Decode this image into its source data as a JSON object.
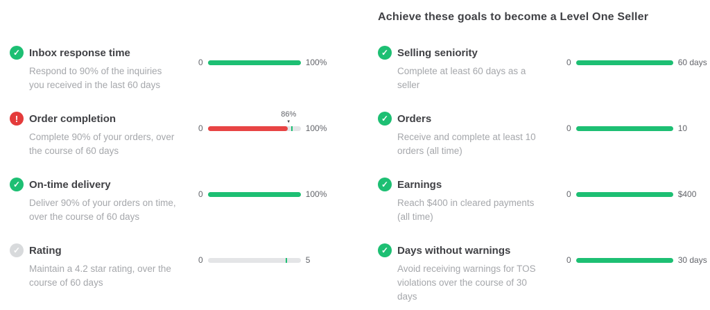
{
  "header": {
    "title": "Achieve these goals to become a Level One Seller"
  },
  "colors": {
    "success_green": "#1dbf73",
    "error_red": "#e84444",
    "neutral_icon_gray": "#d8dadc",
    "track_gray": "#e4e5e7",
    "title_text": "#404145",
    "description_text": "#a5a7ab"
  },
  "left_goals": [
    {
      "status": "success",
      "icon_glyph": "✓",
      "title": "Inbox response time",
      "description": "Respond to 90% of the inquiries you received in the last 60 days",
      "bar": {
        "start_label": "0",
        "end_label": "100%",
        "fill_percent": 100,
        "fill_color": "#1dbf73"
      }
    },
    {
      "status": "error",
      "icon_glyph": "!",
      "title": "Order completion",
      "description": "Complete 90% of your orders, over the course of 60 days",
      "bar": {
        "start_label": "0",
        "end_label": "100%",
        "fill_percent": 86,
        "fill_color": "#e84444",
        "tick_percent": 90,
        "tick_color": "#1dbf73",
        "value_label": "86%",
        "value_percent": 87
      }
    },
    {
      "status": "success",
      "icon_glyph": "✓",
      "title": "On-time delivery",
      "description": "Deliver 90% of your orders on time, over the course of 60 days",
      "bar": {
        "start_label": "0",
        "end_label": "100%",
        "fill_percent": 100,
        "fill_color": "#1dbf73"
      }
    },
    {
      "status": "neutral",
      "icon_glyph": "✓",
      "title": "Rating",
      "description": "Maintain a 4.2 star rating, over the course of 60 days",
      "bar": {
        "start_label": "0",
        "end_label": "5",
        "fill_percent": 0,
        "fill_color": "#1dbf73",
        "tick_percent": 84,
        "tick_color": "#1dbf73"
      }
    }
  ],
  "right_goals": [
    {
      "status": "success",
      "icon_glyph": "✓",
      "title": "Selling seniority",
      "description": "Complete at least 60 days as a seller",
      "bar": {
        "start_label": "0",
        "end_label": "60 days",
        "fill_percent": 100,
        "fill_color": "#1dbf73"
      }
    },
    {
      "status": "success",
      "icon_glyph": "✓",
      "title": "Orders",
      "description": "Receive and complete at least 10 orders (all time)",
      "bar": {
        "start_label": "0",
        "end_label": "10",
        "fill_percent": 100,
        "fill_color": "#1dbf73"
      }
    },
    {
      "status": "success",
      "icon_glyph": "✓",
      "title": "Earnings",
      "description": "Reach $400 in cleared payments (all time)",
      "bar": {
        "start_label": "0",
        "end_label": "$400",
        "fill_percent": 100,
        "fill_color": "#1dbf73"
      }
    },
    {
      "status": "success",
      "icon_glyph": "✓",
      "title": "Days without warnings",
      "description": "Avoid receiving warnings for TOS violations over the course of 30 days",
      "bar": {
        "start_label": "0",
        "end_label": "30 days",
        "fill_percent": 100,
        "fill_color": "#1dbf73"
      }
    }
  ]
}
